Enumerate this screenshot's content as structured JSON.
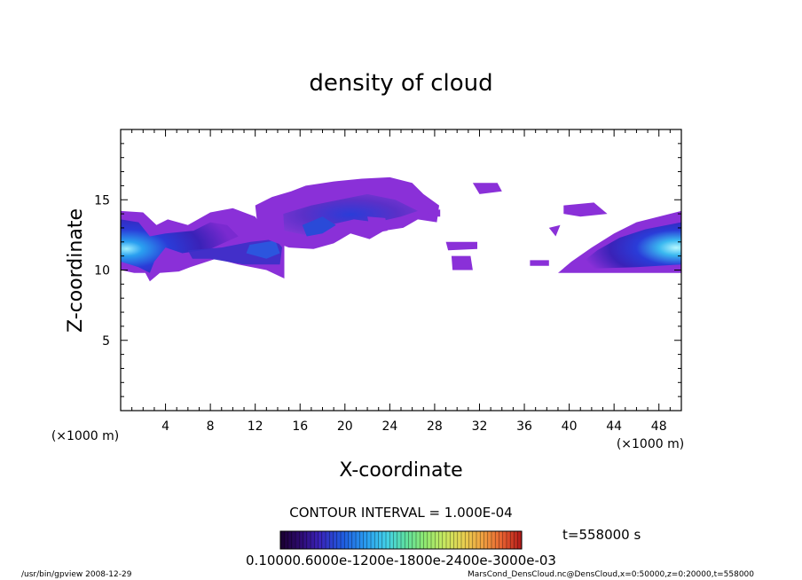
{
  "chart_data": {
    "type": "heatmap",
    "title": "density of cloud",
    "xlabel": "X-coordinate",
    "ylabel": "Z-coordinate",
    "x_unit": "(×1000 m)",
    "y_unit": "(×1000 m)",
    "xlim": [
      0,
      50
    ],
    "ylim": [
      0,
      20
    ],
    "x_ticks": [
      4,
      8,
      12,
      16,
      20,
      24,
      28,
      32,
      36,
      40,
      44,
      48
    ],
    "y_ticks": [
      5,
      10,
      15
    ],
    "x_tick_labels": [
      "4",
      "8",
      "12",
      "16",
      "20",
      "24",
      "28",
      "32",
      "36",
      "40",
      "44",
      "48"
    ],
    "y_tick_labels": [
      "5",
      "10",
      "15"
    ],
    "contour_interval": "CONTOUR INTERVAL = 1.000E-04",
    "time_label": "t=558000 s",
    "colorbar_labels": [
      "0.1000",
      "0.6000",
      "0.1200e-03",
      "0.1800e-03",
      "0.2400e-03",
      "0.3000e-03"
    ],
    "colorbar_label_text": "0.10000.6000e-1200e-1800e-2400e-3000e-03",
    "colormap": [
      "#1a0030",
      "#2d0a6e",
      "#3a22b8",
      "#1f5ce0",
      "#2aa0f0",
      "#42d0e8",
      "#5ee0a0",
      "#90e870",
      "#c8e860",
      "#e8d050",
      "#f0a040",
      "#e86030",
      "#d03020",
      "#b01818"
    ],
    "cloud_regions": [
      {
        "name": "left-layer",
        "x": [
          0,
          15
        ],
        "z": [
          9.2,
          14.2
        ],
        "peak_level": "high"
      },
      {
        "name": "upper-middle",
        "x": [
          12,
          28.5
        ],
        "z": [
          10.8,
          16.5
        ],
        "peak_level": "medium"
      },
      {
        "name": "small-patch-1",
        "x": [
          29,
          32
        ],
        "z": [
          11.5,
          12
        ],
        "peak_level": "low"
      },
      {
        "name": "small-patch-2",
        "x": [
          31.5,
          34
        ],
        "z": [
          15.5,
          16.2
        ],
        "peak_level": "low"
      },
      {
        "name": "small-patch-3",
        "x": [
          29.5,
          31.5
        ],
        "z": [
          10,
          11
        ],
        "peak_level": "low"
      },
      {
        "name": "small-patch-4",
        "x": [
          36.5,
          38
        ],
        "z": [
          10.4,
          10.6
        ],
        "peak_level": "low"
      },
      {
        "name": "right-layer",
        "x": [
          39,
          50
        ],
        "z": [
          9.8,
          14.2
        ],
        "peak_level": "high"
      }
    ],
    "footer_left": "/usr/bin/gpview  2008-12-29",
    "footer_right": "MarsCond_DensCloud.nc@DensCloud,x=0:50000,z=0:20000,t=558000",
    "grid": false
  }
}
